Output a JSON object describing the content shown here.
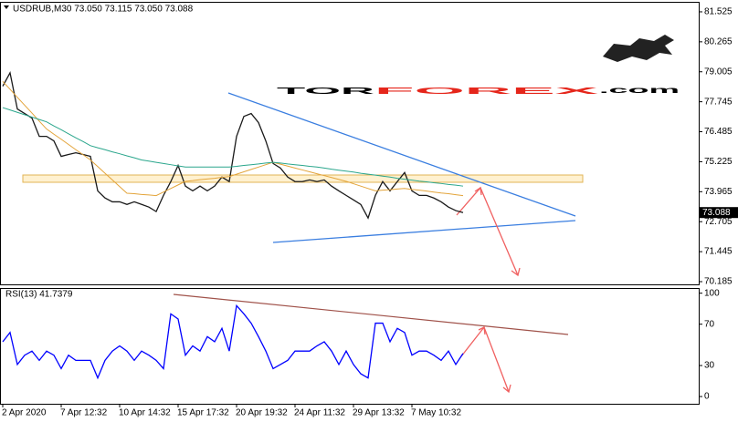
{
  "logo": {
    "part1": "TOR",
    "part2": "FOREX",
    "part3": ".com"
  },
  "chart_data": [
    {
      "type": "line",
      "title": "USDRUB,M30  73.050 73.115 73.050 73.088",
      "current_price_label": "73.088",
      "ylim": [
        70.07,
        81.945
      ],
      "yticks": [
        70.185,
        71.445,
        72.705,
        73.965,
        75.225,
        76.485,
        77.745,
        79.005,
        80.265,
        81.525
      ],
      "series": [
        {
          "color": "#1a1a1a",
          "values": [
            78.4,
            78.96,
            77.44,
            77.25,
            77.06,
            76.29,
            76.29,
            76.1,
            75.45,
            75.53,
            75.6,
            75.53,
            75.45,
            74.0,
            73.7,
            73.54,
            73.54,
            73.43,
            73.54,
            73.43,
            73.32,
            73.13,
            73.81,
            74.39,
            75.07,
            74.2,
            74.0,
            74.2,
            74.0,
            74.2,
            74.58,
            74.39,
            76.29,
            77.13,
            77.25,
            76.87,
            76.1,
            75.15,
            74.96,
            74.58,
            74.39,
            74.39,
            74.46,
            74.39,
            74.46,
            74.2,
            74.0,
            73.81,
            73.62,
            73.43,
            72.86,
            73.81,
            74.39,
            74.0,
            74.39,
            74.77,
            74.0,
            73.81,
            73.81,
            73.7,
            73.54,
            73.32,
            73.17,
            73.088
          ]
        },
        {
          "color": "#e3a43a",
          "values": [
            78.6,
            78.27,
            77.93,
            77.6,
            77.27,
            76.93,
            76.6,
            76.38,
            76.17,
            75.95,
            75.73,
            75.52,
            75.3,
            75.02,
            74.74,
            74.46,
            74.18,
            73.9,
            73.88,
            73.85,
            73.83,
            73.8,
            73.95,
            74.1,
            74.25,
            74.4,
            74.43,
            74.47,
            74.5,
            74.53,
            74.57,
            74.6,
            74.7,
            74.8,
            74.9,
            75.0,
            75.1,
            75.2,
            75.12,
            75.04,
            74.96,
            74.88,
            74.8,
            74.72,
            74.64,
            74.56,
            74.48,
            74.4,
            74.3,
            74.2,
            74.1,
            74.0,
            74.03,
            74.05,
            74.08,
            74.1,
            74.06,
            74.03,
            73.99,
            73.95,
            73.91,
            73.88,
            73.84,
            73.8
          ]
        },
        {
          "color": "#2aa68c",
          "values": [
            77.5,
            77.4,
            77.3,
            77.2,
            77.1,
            77.0,
            76.9,
            76.73,
            76.57,
            76.4,
            76.23,
            76.07,
            75.9,
            75.81,
            75.73,
            75.64,
            75.56,
            75.47,
            75.39,
            75.3,
            75.25,
            75.2,
            75.15,
            75.1,
            75.05,
            75.0,
            75.0,
            75.0,
            75.0,
            75.0,
            75.0,
            75.0,
            75.03,
            75.07,
            75.1,
            75.13,
            75.17,
            75.2,
            75.17,
            75.13,
            75.1,
            75.07,
            75.03,
            75.0,
            74.96,
            74.91,
            74.87,
            74.83,
            74.79,
            74.74,
            74.7,
            74.66,
            74.62,
            74.58,
            74.53,
            74.49,
            74.45,
            74.41,
            74.38,
            74.34,
            74.31,
            74.27,
            74.24,
            74.2
          ]
        }
      ]
    },
    {
      "type": "line",
      "title": "RSI(13) 41.7379",
      "ylim": [
        -7,
        105
      ],
      "yticks": [
        0,
        30,
        70,
        100
      ],
      "categories": [
        "2 Apr 2020",
        null,
        null,
        null,
        null,
        null,
        null,
        null,
        "7 Apr 12:32",
        null,
        null,
        null,
        null,
        null,
        null,
        null,
        "10 Apr 14:32",
        null,
        null,
        null,
        null,
        null,
        null,
        null,
        "15 Apr 17:32",
        null,
        null,
        null,
        null,
        null,
        null,
        null,
        "20 Apr 19:32",
        null,
        null,
        null,
        null,
        null,
        null,
        null,
        "24 Apr 11:32",
        null,
        null,
        null,
        null,
        null,
        null,
        null,
        "29 Apr 13:32",
        null,
        null,
        null,
        null,
        null,
        null,
        null,
        "7 May 10:32",
        null,
        null,
        null,
        null,
        null,
        null,
        null
      ],
      "series": [
        {
          "color": "#0000ff",
          "values": [
            53,
            62,
            31,
            40,
            44,
            35,
            44,
            40,
            27,
            40,
            35,
            35,
            35,
            18,
            35,
            44,
            49,
            44,
            35,
            44,
            40,
            35,
            27,
            80,
            75,
            40,
            49,
            44,
            58,
            53,
            66,
            44,
            88,
            80,
            71,
            58,
            44,
            27,
            31,
            35,
            44,
            44,
            44,
            49,
            53,
            44,
            31,
            44,
            31,
            22,
            18,
            71,
            71,
            53,
            66,
            62,
            40,
            44,
            44,
            40,
            35,
            44,
            31,
            41.7379
          ]
        }
      ]
    }
  ]
}
